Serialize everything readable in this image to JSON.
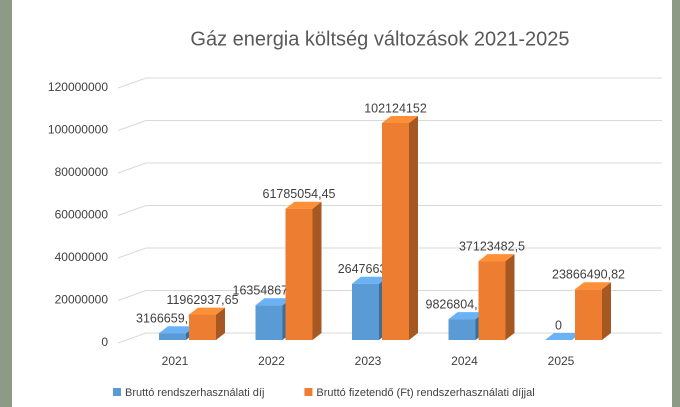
{
  "chart_data": {
    "type": "bar3d",
    "title": "Gáz energia költség változások 2021-2025",
    "categories": [
      "2021",
      "2022",
      "2023",
      "2024",
      "2025"
    ],
    "series": [
      {
        "name": "Bruttó rendszerhasználati díj",
        "color": "#5b9bd5",
        "values": [
          3166659.966,
          16354867.35,
          26476632,
          9826804.192,
          0
        ],
        "value_labels": [
          "3166659,966",
          "16354867,35",
          "26476632",
          "9826804,192",
          "0"
        ]
      },
      {
        "name": "Bruttó fizetendő (Ft) rendszerhasználati díjjal",
        "color": "#ed7d31",
        "values": [
          11962937.65,
          61785054.45,
          102124152,
          37123482.5,
          23866490.82
        ],
        "value_labels": [
          "11962937,65",
          "61785054,45",
          "102124152",
          "37123482,5",
          "23866490,82"
        ]
      }
    ],
    "ylim": [
      0,
      120000000
    ],
    "yticks": [
      0,
      20000000,
      40000000,
      60000000,
      80000000,
      100000000,
      120000000
    ],
    "grid": true,
    "legend": "bottom"
  }
}
